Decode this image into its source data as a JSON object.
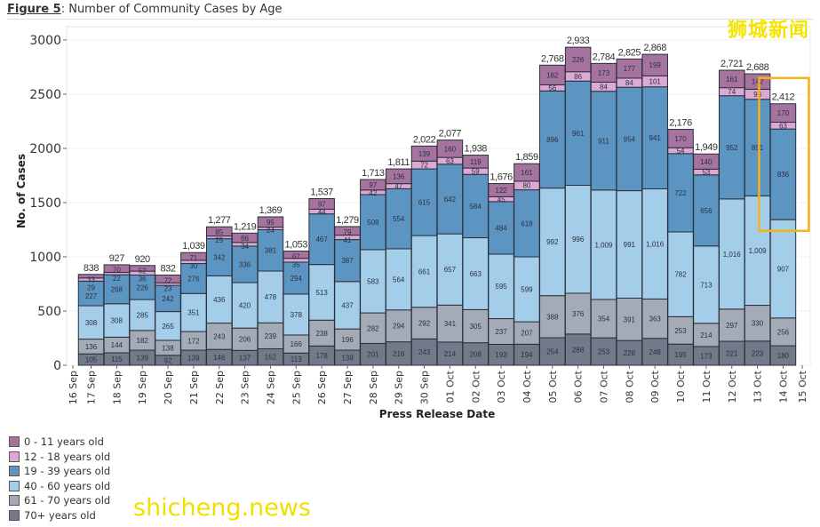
{
  "title": {
    "prefix": "Figure 5",
    "text": ": Number of Community Cases by Age"
  },
  "watermarks": {
    "top_right": "狮城新闻",
    "bottom_left": "shicheng.news"
  },
  "highlight_color": "#f5b21a",
  "chart_data": {
    "type": "bar",
    "stacked": true,
    "xlabel": "Press Release Date",
    "ylabel": "No. of Cases",
    "ylim": [
      0,
      3000
    ],
    "yticks": [
      0,
      500,
      1000,
      1500,
      2000,
      2500,
      3000
    ],
    "grid": "horizontal",
    "legend_placement": "bottom-left",
    "x_tick_labels": [
      "16 Sep",
      "17 Sep",
      "18 Sep",
      "19 Sep",
      "20 Sep",
      "21 Sep",
      "22 Sep",
      "23 Sep",
      "24 Sep",
      "25 Sep",
      "26 Sep",
      "27 Sep",
      "28 Sep",
      "29 Sep",
      "30 Sep",
      "01 Oct",
      "02 Oct",
      "03 Oct",
      "04 Oct",
      "05 Oct",
      "06 Oct",
      "07 Oct",
      "08 Oct",
      "09 Oct",
      "10 Oct",
      "11 Oct",
      "12 Oct",
      "13 Oct",
      "14 Oct",
      "15 Oct"
    ],
    "categories": [
      "17 Sep",
      "18 Sep",
      "19 Sep",
      "20 Sep",
      "21 Sep",
      "22 Sep",
      "23 Sep",
      "24 Sep",
      "25 Sep",
      "26 Sep",
      "27 Sep",
      "28 Sep",
      "29 Sep",
      "30 Sep",
      "01 Oct",
      "02 Oct",
      "03 Oct",
      "04 Oct",
      "05 Oct",
      "06 Oct",
      "07 Oct",
      "08 Oct",
      "09 Oct",
      "10 Oct",
      "11 Oct",
      "12 Oct",
      "13 Oct",
      "14 Oct"
    ],
    "totals": [
      "838",
      "927",
      "920",
      "832",
      "1,039",
      "1,277",
      "1,219",
      "1,369",
      "1,053",
      "1,537",
      "1,279",
      "1,713",
      "1,811",
      "2,022",
      "2,077",
      "1,938",
      "1,676",
      "1,859",
      "2,768",
      "2,933",
      "2,784",
      "2,825",
      "2,868",
      "2,176",
      "1,949",
      "2,721",
      "2,688",
      "2,412"
    ],
    "highlighted_category": "14 Oct",
    "series": [
      {
        "name": "70+ years old",
        "color": "#727988",
        "values": [
          105,
          115,
          139,
          92,
          139,
          146,
          137,
          152,
          113,
          178,
          139,
          201,
          216,
          243,
          214,
          208,
          193,
          194,
          254,
          288,
          253,
          228,
          248,
          195,
          173,
          221,
          223,
          180
        ]
      },
      {
        "name": "61 - 70 years old",
        "color": "#a4aab6",
        "values": [
          136,
          144,
          182,
          138,
          172,
          243,
          206,
          239,
          166,
          238,
          196,
          282,
          294,
          292,
          341,
          305,
          237,
          207,
          388,
          376,
          354,
          391,
          363,
          253,
          214,
          297,
          330,
          256
        ]
      },
      {
        "name": "40 - 60 years old",
        "color": "#a3cde9",
        "values": [
          308,
          308,
          285,
          265,
          351,
          436,
          420,
          478,
          378,
          513,
          437,
          583,
          564,
          661,
          657,
          663,
          595,
          599,
          992,
          996,
          1009,
          991,
          1016,
          782,
          713,
          1016,
          1009,
          907
        ]
      },
      {
        "name": "19 - 39 years old",
        "color": "#5d95c2",
        "values": [
          227,
          268,
          226,
          242,
          276,
          342,
          336,
          381,
          294,
          467,
          387,
          508,
          554,
          615,
          642,
          584,
          484,
          618,
          896,
          961,
          911,
          954,
          941,
          722,
          656,
          952,
          891,
          836
        ]
      },
      {
        "name": "12 - 18 years old",
        "color": "#dba9d2",
        "values": [
          29,
          22,
          36,
          23,
          30,
          25,
          34,
          24,
          35,
          44,
          41,
          42,
          47,
          72,
          63,
          59,
          45,
          80,
          56,
          86,
          84,
          84,
          101,
          54,
          53,
          74,
          93,
          63
        ]
      },
      {
        "name": "0 - 11 years old",
        "color": "#a6739e",
        "values": [
          33,
          70,
          52,
          72,
          71,
          85,
          86,
          95,
          67,
          97,
          79,
          97,
          136,
          139,
          160,
          119,
          122,
          161,
          182,
          226,
          173,
          177,
          199,
          170,
          140,
          161,
          142,
          170
        ]
      }
    ],
    "legend_order": [
      "0 - 11 years old",
      "12 - 18 years old",
      "19 - 39 years old",
      "40 - 60 years old",
      "61 - 70 years old",
      "70+ years old"
    ]
  }
}
